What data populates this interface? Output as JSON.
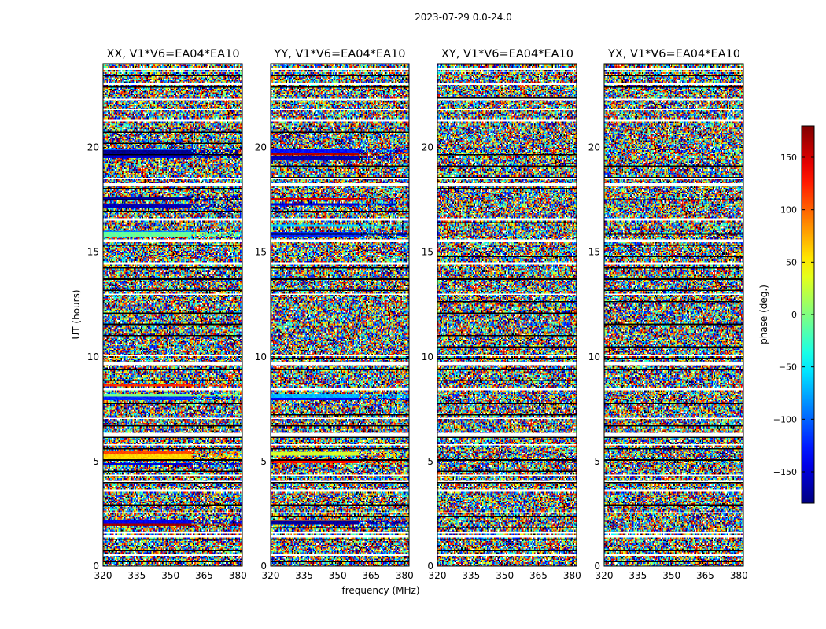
{
  "figure": {
    "suptitle": "2023-07-29 0.0-24.0",
    "xlabel": "frequency (MHz)",
    "ylabel": "UT (hours)",
    "background": "#ffffff"
  },
  "chart_data": {
    "type": "heatmap",
    "colormap": "jet",
    "panels": [
      {
        "title": "XX, V1*V6=EA04*EA10",
        "xlim": [
          320,
          382
        ],
        "ylim": [
          0,
          24
        ],
        "xticks": [
          320,
          335,
          350,
          365,
          380
        ],
        "yticks": [
          0,
          5,
          10,
          15,
          20
        ],
        "coherent_bands": [
          {
            "t0": 1.9,
            "t1": 2.05,
            "phase": 170
          },
          {
            "t0": 2.05,
            "t1": 2.2,
            "phase": -140
          },
          {
            "t0": 4.8,
            "t1": 4.95,
            "phase": -150
          },
          {
            "t0": 5.1,
            "t1": 5.35,
            "phase": 60
          },
          {
            "t0": 5.35,
            "t1": 5.5,
            "phase": 110
          },
          {
            "t0": 7.9,
            "t1": 8.1,
            "phase": -120
          },
          {
            "t0": 8.1,
            "t1": 8.25,
            "phase": 0
          },
          {
            "t0": 8.6,
            "t1": 8.7,
            "phase": 120
          },
          {
            "t0": 15.7,
            "t1": 15.95,
            "phase": -10
          },
          {
            "t0": 15.95,
            "t1": 16.05,
            "phase": -90
          },
          {
            "t0": 17.1,
            "t1": 17.3,
            "phase": -160
          },
          {
            "t0": 17.5,
            "t1": 17.65,
            "phase": -170
          },
          {
            "t0": 19.5,
            "t1": 19.65,
            "phase": -150
          },
          {
            "t0": 19.65,
            "t1": 19.85,
            "phase": -175
          },
          {
            "t0": 19.85,
            "t1": 19.95,
            "phase": -110
          }
        ]
      },
      {
        "title": "YY, V1*V6=EA04*EA10",
        "xlim": [
          320,
          382
        ],
        "ylim": [
          0,
          24
        ],
        "xticks": [
          320,
          335,
          350,
          365,
          380
        ],
        "yticks": [
          0,
          5,
          10,
          15,
          20
        ],
        "coherent_bands": [
          {
            "t0": 2.0,
            "t1": 2.15,
            "phase": -170
          },
          {
            "t0": 2.15,
            "t1": 2.25,
            "phase": 90
          },
          {
            "t0": 4.9,
            "t1": 5.05,
            "phase": 130
          },
          {
            "t0": 5.3,
            "t1": 5.45,
            "phase": 30
          },
          {
            "t0": 7.9,
            "t1": 8.05,
            "phase": -140
          },
          {
            "t0": 8.05,
            "t1": 8.2,
            "phase": -70
          },
          {
            "t0": 15.75,
            "t1": 15.95,
            "phase": -120
          },
          {
            "t0": 16.2,
            "t1": 16.35,
            "phase": -60
          },
          {
            "t0": 17.2,
            "t1": 17.35,
            "phase": -150
          },
          {
            "t0": 17.45,
            "t1": 17.6,
            "phase": 150
          },
          {
            "t0": 19.4,
            "t1": 19.55,
            "phase": -160
          },
          {
            "t0": 19.6,
            "t1": 19.75,
            "phase": 165
          },
          {
            "t0": 19.75,
            "t1": 19.9,
            "phase": -130
          }
        ]
      },
      {
        "title": "XY, V1*V6=EA04*EA10",
        "xlim": [
          320,
          382
        ],
        "ylim": [
          0,
          24
        ],
        "xticks": [
          320,
          335,
          350,
          365,
          380
        ],
        "yticks": [
          0,
          5,
          10,
          15,
          20
        ],
        "coherent_bands": []
      },
      {
        "title": "YX, V1*V6=EA04*EA10",
        "xlim": [
          320,
          382
        ],
        "ylim": [
          0,
          24
        ],
        "xticks": [
          320,
          335,
          350,
          365,
          380
        ],
        "yticks": [
          0,
          5,
          10,
          15,
          20
        ],
        "coherent_bands": []
      }
    ],
    "flagged_hours": [
      0.55,
      1.45,
      1.6,
      2.55,
      3.6,
      4.05,
      4.35,
      5.8,
      6.2,
      6.3,
      7.05,
      8.45,
      9.65,
      10.05,
      13.0,
      14.45,
      15.55,
      16.55,
      18.25,
      18.5,
      21.3,
      21.8,
      22.3,
      23.05,
      23.6,
      23.75
    ],
    "colorbar": {
      "label": "phase (deg.)",
      "range": [
        -180,
        180
      ],
      "ticks": [
        150,
        100,
        50,
        0,
        -50,
        -100,
        -150
      ],
      "tick_labels": [
        "150",
        "100",
        "50",
        "0",
        "−50",
        "−100",
        "−150"
      ],
      "footer": "......"
    }
  }
}
